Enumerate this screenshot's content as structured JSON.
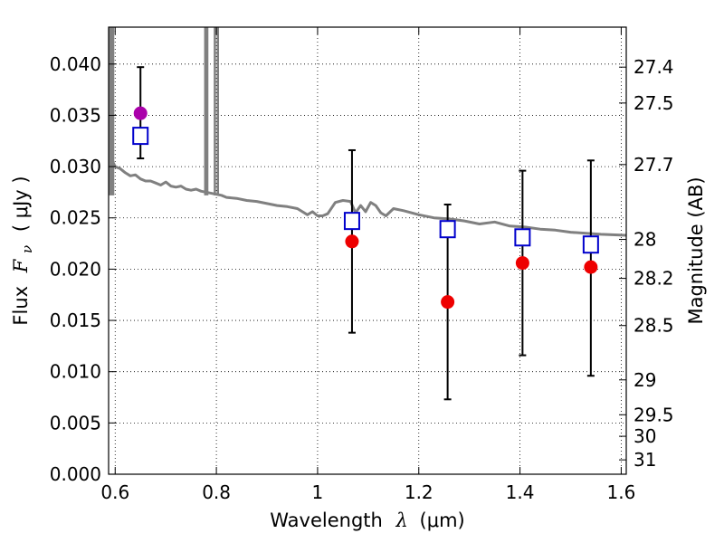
{
  "chart_data": {
    "type": "scatter",
    "title": "",
    "xlabel": "Wavelength",
    "xlabel_symbol": "λ",
    "xlabel_unit": "(μm)",
    "ylabel": "Flux",
    "ylabel_symbol": "F",
    "ylabel_subscript": "ν",
    "ylabel_unit": "( μJy )",
    "ylabel_right": "Magnitude (AB)",
    "xlim": [
      0.587,
      1.61
    ],
    "ylim": [
      0.0,
      0.0436
    ],
    "grid": true,
    "legend": "none",
    "x_ticks": [
      0.6,
      0.8,
      1.0,
      1.2,
      1.4,
      1.6
    ],
    "x_tick_labels": [
      "0.6",
      "0.8",
      "1",
      "1.2",
      "1.4",
      "1.6"
    ],
    "y_ticks": [
      0.0,
      0.005,
      0.01,
      0.015,
      0.02,
      0.025,
      0.03,
      0.035,
      0.04
    ],
    "y_tick_labels": [
      "0.000",
      "0.005",
      "0.010",
      "0.015",
      "0.020",
      "0.025",
      "0.030",
      "0.035",
      "0.040"
    ],
    "magnitude_ticks": [
      {
        "label": "27.4",
        "flux": 0.0397
      },
      {
        "label": "27.5",
        "flux": 0.0362
      },
      {
        "label": "27.7",
        "flux": 0.0302
      },
      {
        "label": "28",
        "flux": 0.0229
      },
      {
        "label": "28.2",
        "flux": 0.0191
      },
      {
        "label": "28.5",
        "flux": 0.0145
      },
      {
        "label": "29",
        "flux": 0.0092
      },
      {
        "label": "29.5",
        "flux": 0.0058
      },
      {
        "label": "30",
        "flux": 0.0037
      },
      {
        "label": "31",
        "flux": 0.0014
      }
    ],
    "series": [
      {
        "kind": "model_spectrum",
        "color": "#808080",
        "points": [
          [
            0.59,
            0.031
          ],
          [
            0.6,
            0.03
          ],
          [
            0.61,
            0.0298
          ],
          [
            0.62,
            0.0294
          ],
          [
            0.63,
            0.0291
          ],
          [
            0.64,
            0.0292
          ],
          [
            0.65,
            0.0288
          ],
          [
            0.66,
            0.0286
          ],
          [
            0.67,
            0.0286
          ],
          [
            0.68,
            0.0284
          ],
          [
            0.69,
            0.0282
          ],
          [
            0.7,
            0.0285
          ],
          [
            0.71,
            0.0281
          ],
          [
            0.72,
            0.028
          ],
          [
            0.73,
            0.0281
          ],
          [
            0.74,
            0.0278
          ],
          [
            0.75,
            0.0277
          ],
          [
            0.76,
            0.0278
          ],
          [
            0.77,
            0.0276
          ],
          [
            0.8,
            0.0273
          ],
          [
            0.81,
            0.0272
          ],
          [
            0.82,
            0.027
          ],
          [
            0.84,
            0.0269
          ],
          [
            0.86,
            0.0267
          ],
          [
            0.88,
            0.0266
          ],
          [
            0.9,
            0.0264
          ],
          [
            0.92,
            0.0262
          ],
          [
            0.94,
            0.0261
          ],
          [
            0.96,
            0.0259
          ],
          [
            0.98,
            0.0253
          ],
          [
            0.99,
            0.0256
          ],
          [
            1.0,
            0.0252
          ],
          [
            1.01,
            0.0252
          ],
          [
            1.02,
            0.0254
          ],
          [
            1.035,
            0.0265
          ],
          [
            1.05,
            0.0267
          ],
          [
            1.065,
            0.0266
          ],
          [
            1.075,
            0.0255
          ],
          [
            1.085,
            0.0262
          ],
          [
            1.095,
            0.0256
          ],
          [
            1.105,
            0.0265
          ],
          [
            1.115,
            0.0262
          ],
          [
            1.125,
            0.0255
          ],
          [
            1.135,
            0.0252
          ],
          [
            1.15,
            0.0259
          ],
          [
            1.17,
            0.0257
          ],
          [
            1.2,
            0.0253
          ],
          [
            1.23,
            0.025
          ],
          [
            1.26,
            0.0249
          ],
          [
            1.29,
            0.0247
          ],
          [
            1.32,
            0.0244
          ],
          [
            1.35,
            0.0246
          ],
          [
            1.38,
            0.0242
          ],
          [
            1.41,
            0.0241
          ],
          [
            1.44,
            0.0239
          ],
          [
            1.47,
            0.0238
          ],
          [
            1.5,
            0.0236
          ],
          [
            1.53,
            0.0235
          ],
          [
            1.56,
            0.0234
          ],
          [
            1.61,
            0.0233
          ]
        ],
        "spikes": [
          {
            "x": 0.59,
            "y_max": 0.0436
          },
          {
            "x": 0.593,
            "y_max": 0.0436
          },
          {
            "x": 0.596,
            "y_max": 0.0436
          },
          {
            "x": 0.778,
            "y_max": 0.0436
          },
          {
            "x": 0.782,
            "y_max": 0.0436
          },
          {
            "x": 0.797,
            "y_max": 0.0436
          },
          {
            "x": 0.803,
            "y_max": 0.0436
          }
        ]
      },
      {
        "kind": "model_photometry",
        "marker": "open-square",
        "color": "#0000cc",
        "points": [
          {
            "x": 0.65,
            "y": 0.033
          },
          {
            "x": 1.068,
            "y": 0.0247
          },
          {
            "x": 1.257,
            "y": 0.0239
          },
          {
            "x": 1.405,
            "y": 0.0231
          },
          {
            "x": 1.54,
            "y": 0.0224
          }
        ]
      },
      {
        "kind": "observed_photometry",
        "marker": "filled-circle",
        "color": "#ee0000",
        "points": [
          {
            "x": 0.65,
            "y": 0.0352,
            "err_lo": 0.0308,
            "err_hi": 0.0397,
            "color": "#aa00aa"
          },
          {
            "x": 1.068,
            "y": 0.0227,
            "err_lo": 0.0138,
            "err_hi": 0.0316
          },
          {
            "x": 1.257,
            "y": 0.0168,
            "err_lo": 0.0073,
            "err_hi": 0.0263
          },
          {
            "x": 1.405,
            "y": 0.0206,
            "err_lo": 0.0116,
            "err_hi": 0.0296
          },
          {
            "x": 1.54,
            "y": 0.0202,
            "err_lo": 0.0096,
            "err_hi": 0.0306
          }
        ]
      }
    ]
  }
}
